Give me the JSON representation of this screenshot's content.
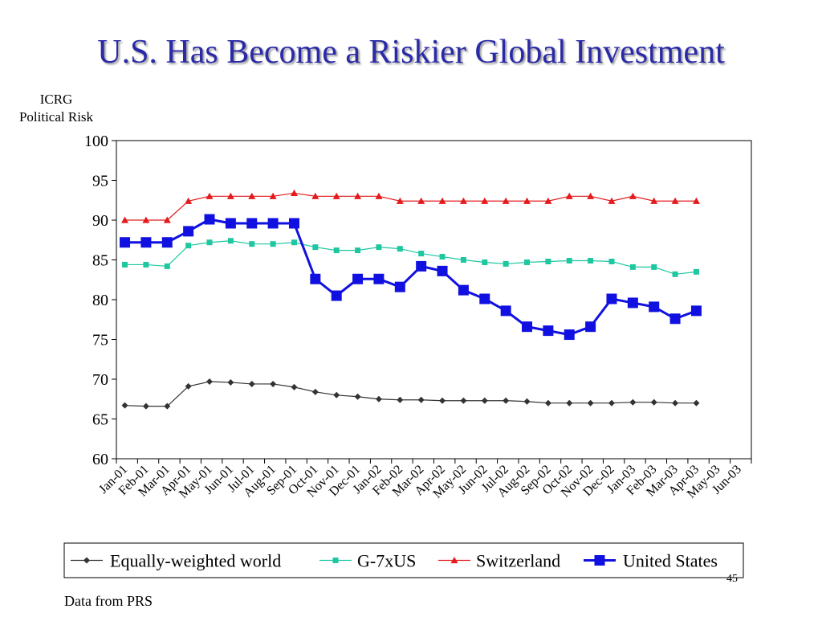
{
  "slide": {
    "title": "U.S. Has Become a Riskier Global Investment",
    "page_number": "45",
    "source_note": "Data from PRS"
  },
  "chart_data": {
    "type": "line",
    "ylabel_lines": [
      "ICRG",
      "Political Risk"
    ],
    "xlabel": "",
    "ylim": [
      60,
      100
    ],
    "yticks": [
      60,
      65,
      70,
      75,
      80,
      85,
      90,
      95,
      100
    ],
    "grid": false,
    "legend_position": "bottom",
    "categories": [
      "Jan-01",
      "Feb-01",
      "Mar-01",
      "Apr-01",
      "May-01",
      "Jun-01",
      "Jul-01",
      "Aug-01",
      "Sep-01",
      "Oct-01",
      "Nov-01",
      "Dec-01",
      "Jan-02",
      "Feb-02",
      "Mar-02",
      "Apr-02",
      "May-02",
      "Jun-02",
      "Jul-02",
      "Aug-02",
      "Sep-02",
      "Oct-02",
      "Nov-02",
      "Dec-02",
      "Jan-03",
      "Feb-03",
      "Mar-03",
      "Apr-03",
      "May-03",
      "Jun-03"
    ],
    "series": [
      {
        "name": "Equally-weighted world",
        "color": "#333333",
        "marker": "diamond",
        "values": [
          66.7,
          66.6,
          66.6,
          69.1,
          69.7,
          69.6,
          69.4,
          69.4,
          69.0,
          68.4,
          68.0,
          67.8,
          67.5,
          67.4,
          67.4,
          67.3,
          67.3,
          67.3,
          67.3,
          67.2,
          67.0,
          67.0,
          67.0,
          67.0,
          67.1,
          67.1,
          67.0,
          67.0,
          null,
          null
        ]
      },
      {
        "name": "G-7xUS",
        "color": "#1ec7a0",
        "marker": "square-small",
        "values": [
          84.4,
          84.4,
          84.2,
          86.8,
          87.2,
          87.4,
          87.0,
          87.0,
          87.2,
          86.6,
          86.2,
          86.2,
          86.6,
          86.4,
          85.8,
          85.4,
          85.0,
          84.7,
          84.5,
          84.7,
          84.8,
          84.9,
          84.9,
          84.8,
          84.1,
          84.1,
          83.2,
          83.5,
          null,
          null
        ]
      },
      {
        "name": "Switzerland",
        "color": "#e41a1c",
        "marker": "triangle",
        "values": [
          90.0,
          90.0,
          90.0,
          92.4,
          93.0,
          93.0,
          93.0,
          93.0,
          93.4,
          93.0,
          93.0,
          93.0,
          93.0,
          92.4,
          92.4,
          92.4,
          92.4,
          92.4,
          92.4,
          92.4,
          92.4,
          93.0,
          93.0,
          92.4,
          93.0,
          92.4,
          92.4,
          92.4,
          null,
          null
        ]
      },
      {
        "name": "United States",
        "color": "#1010e0",
        "marker": "square",
        "values": [
          87.2,
          87.2,
          87.2,
          88.6,
          90.1,
          89.6,
          89.6,
          89.6,
          89.6,
          82.6,
          80.5,
          82.6,
          82.6,
          81.6,
          84.2,
          83.6,
          81.2,
          80.1,
          78.6,
          76.6,
          76.1,
          75.6,
          76.6,
          80.1,
          79.6,
          79.1,
          77.6,
          78.6,
          null,
          null
        ]
      }
    ]
  }
}
